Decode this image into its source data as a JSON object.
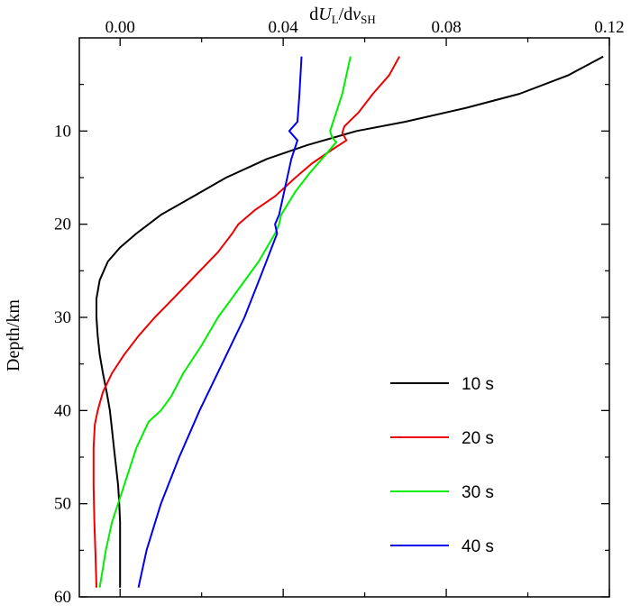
{
  "chart_data": {
    "type": "line",
    "title": "",
    "xlabel": {
      "main": "d",
      "u": "U",
      "u_sub": "L",
      "mid": "/d",
      "v": "v",
      "v_sub": "SH"
    },
    "ylabel": "Depth/km",
    "x_axis_position": "top",
    "y_inverted": true,
    "xlim": [
      -0.01,
      0.12
    ],
    "ylim": [
      0,
      60
    ],
    "xticks": [
      0.0,
      0.04,
      0.08,
      0.12
    ],
    "xtick_labels": [
      "0.00",
      "0.04",
      "0.08",
      "0.12"
    ],
    "xminor": [
      0.02,
      0.06,
      0.1
    ],
    "yticks": [
      10,
      20,
      30,
      40,
      50,
      60
    ],
    "ytick_labels": [
      "10",
      "20",
      "30",
      "40",
      "50",
      "60"
    ],
    "yminor": [
      5,
      15,
      25,
      35,
      45,
      55
    ],
    "grid": false,
    "legend_position": "bottom-right",
    "series": [
      {
        "name": "10 s",
        "color": "#000000",
        "points": [
          [
            0.1185,
            2
          ],
          [
            0.11,
            4
          ],
          [
            0.098,
            6
          ],
          [
            0.085,
            7.5
          ],
          [
            0.07,
            9
          ],
          [
            0.058,
            10
          ],
          [
            0.046,
            11.5
          ],
          [
            0.036,
            13
          ],
          [
            0.026,
            15
          ],
          [
            0.018,
            17
          ],
          [
            0.01,
            19
          ],
          [
            0.004,
            21
          ],
          [
            0.0,
            22.5
          ],
          [
            -0.003,
            24
          ],
          [
            -0.005,
            26
          ],
          [
            -0.0058,
            28
          ],
          [
            -0.0058,
            30
          ],
          [
            -0.0055,
            32
          ],
          [
            -0.005,
            34
          ],
          [
            -0.0042,
            36
          ],
          [
            -0.0033,
            38
          ],
          [
            -0.0025,
            40
          ],
          [
            -0.002,
            42
          ],
          [
            -0.0015,
            44
          ],
          [
            -0.001,
            46
          ],
          [
            -0.0005,
            48
          ],
          [
            -0.0002,
            50
          ],
          [
            0.0,
            52
          ],
          [
            0.0,
            54
          ],
          [
            0.0,
            56
          ],
          [
            0.0,
            59
          ]
        ]
      },
      {
        "name": "20 s",
        "color": "#ee0000",
        "points": [
          [
            0.0685,
            2
          ],
          [
            0.066,
            4
          ],
          [
            0.062,
            6
          ],
          [
            0.0585,
            8
          ],
          [
            0.055,
            9.5
          ],
          [
            0.0545,
            10.2
          ],
          [
            0.0555,
            11
          ],
          [
            0.052,
            12
          ],
          [
            0.047,
            13.5
          ],
          [
            0.043,
            15
          ],
          [
            0.038,
            17
          ],
          [
            0.033,
            18.5
          ],
          [
            0.029,
            20
          ],
          [
            0.0275,
            21
          ],
          [
            0.024,
            23
          ],
          [
            0.0185,
            25.5
          ],
          [
            0.013,
            28
          ],
          [
            0.0085,
            30
          ],
          [
            0.0045,
            32
          ],
          [
            0.001,
            34
          ],
          [
            -0.002,
            36
          ],
          [
            -0.0042,
            38
          ],
          [
            -0.0055,
            40
          ],
          [
            -0.0062,
            41.5
          ],
          [
            -0.0065,
            44
          ],
          [
            -0.0065,
            48
          ],
          [
            -0.0063,
            52
          ],
          [
            -0.006,
            56
          ],
          [
            -0.0058,
            59
          ]
        ]
      },
      {
        "name": "30 s",
        "color": "#00ee00",
        "points": [
          [
            0.0565,
            2
          ],
          [
            0.0555,
            4
          ],
          [
            0.0545,
            6
          ],
          [
            0.053,
            8
          ],
          [
            0.0515,
            10
          ],
          [
            0.052,
            10.7
          ],
          [
            0.053,
            11.2
          ],
          [
            0.0505,
            12.5
          ],
          [
            0.0465,
            14.5
          ],
          [
            0.043,
            16.5
          ],
          [
            0.0395,
            19
          ],
          [
            0.039,
            20
          ],
          [
            0.038,
            21
          ],
          [
            0.034,
            24
          ],
          [
            0.029,
            27
          ],
          [
            0.024,
            30
          ],
          [
            0.02,
            33
          ],
          [
            0.0155,
            36
          ],
          [
            0.0125,
            38.5
          ],
          [
            0.01,
            40
          ],
          [
            0.007,
            41.2
          ],
          [
            0.004,
            44
          ],
          [
            0.001,
            48
          ],
          [
            -0.002,
            52
          ],
          [
            -0.0035,
            55
          ],
          [
            -0.005,
            59
          ]
        ]
      },
      {
        "name": "40 s",
        "color": "#0000ee",
        "points": [
          [
            0.0445,
            2
          ],
          [
            0.044,
            6
          ],
          [
            0.0435,
            9
          ],
          [
            0.0415,
            10
          ],
          [
            0.0435,
            11
          ],
          [
            0.042,
            13
          ],
          [
            0.0405,
            16
          ],
          [
            0.039,
            19
          ],
          [
            0.038,
            20
          ],
          [
            0.0385,
            21
          ],
          [
            0.035,
            25
          ],
          [
            0.0305,
            30
          ],
          [
            0.025,
            35
          ],
          [
            0.0195,
            40
          ],
          [
            0.0145,
            45
          ],
          [
            0.01,
            50
          ],
          [
            0.0065,
            55
          ],
          [
            0.0045,
            59
          ]
        ]
      }
    ]
  }
}
